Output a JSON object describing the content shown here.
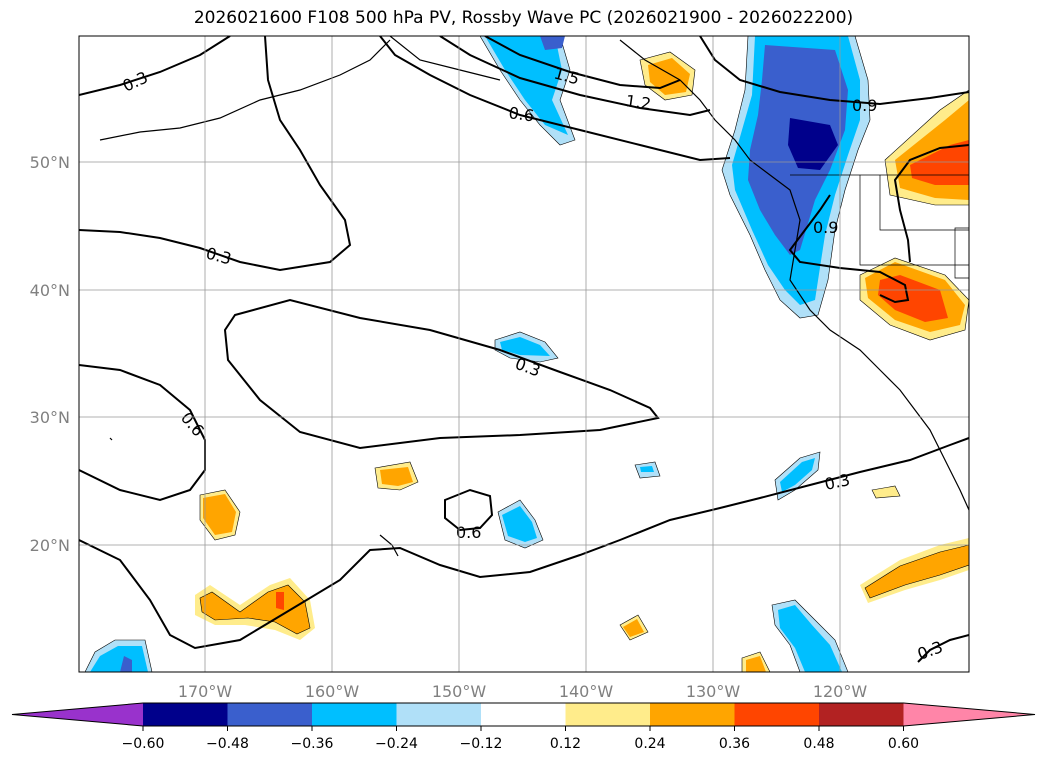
{
  "title": "2026021600 F108 500 hPa PV, Rossby Wave PC (2026021900 - 2026022200)",
  "lat_labels": [
    "50°N",
    "40°N",
    "30°N",
    "20°N"
  ],
  "lon_labels": [
    "170°W",
    "160°W",
    "150°W",
    "140°W",
    "130°W",
    "120°W"
  ],
  "colorbar": {
    "ticks": [
      "−0.60",
      "−0.48",
      "−0.36",
      "−0.24",
      "−0.12",
      "0.12",
      "0.24",
      "0.36",
      "0.48",
      "0.60"
    ],
    "colors": [
      "#9932cc",
      "#00008b",
      "#3a5fcd",
      "#00bfff",
      "#b0e0f8",
      "#ffffff",
      "#ffec8b",
      "#ffa500",
      "#ff4500",
      "#b22222",
      "#ff85a8"
    ]
  },
  "contour_labels": [
    "0.3",
    "0.3",
    "0.3",
    "0.6",
    "0.6",
    "0.6",
    "1.2",
    "1.5",
    "0.9",
    "0.9",
    "0.3",
    "0.3"
  ]
}
